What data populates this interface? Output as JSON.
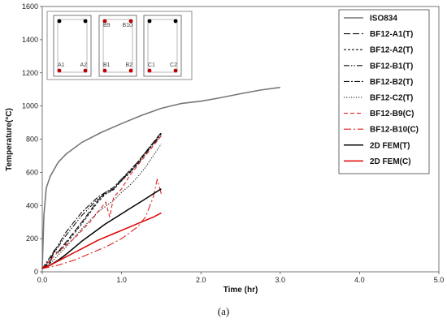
{
  "chart_data": {
    "type": "line",
    "xlabel": "Time (hr)",
    "ylabel": "Temperature(°C)",
    "xlim": [
      0,
      5
    ],
    "ylim": [
      0,
      1600
    ],
    "xticks": [
      "0.0",
      "1.0",
      "2.0",
      "3.0",
      "4.0",
      "5.0"
    ],
    "yticks": [
      "0",
      "200",
      "400",
      "600",
      "800",
      "1000",
      "1200",
      "1400",
      "1600"
    ],
    "legend_position": "top-right",
    "caption": "(a)",
    "series": [
      {
        "name": "ISO834",
        "color": "#777777",
        "dash": "solid",
        "x": [
          0,
          0.02,
          0.05,
          0.1,
          0.2,
          0.3,
          0.5,
          0.75,
          1.0,
          1.25,
          1.5,
          1.75,
          2.0,
          2.25,
          2.5,
          2.75,
          3.0
        ],
        "y": [
          20,
          341,
          505,
          576,
          660,
          710,
          781,
          842,
          894,
          943,
          986,
          1015,
          1029,
          1050,
          1074,
          1096,
          1112
        ]
      },
      {
        "name": "BF12-A1(T)",
        "color": "#111111",
        "dash": "longdash",
        "x": [
          0,
          0.1,
          0.15,
          0.2,
          0.3,
          0.5,
          0.7,
          0.8,
          0.9,
          1.0,
          1.1,
          1.2,
          1.3,
          1.4,
          1.5
        ],
        "y": [
          20,
          60,
          130,
          120,
          180,
          300,
          430,
          480,
          500,
          560,
          600,
          660,
          720,
          780,
          840
        ]
      },
      {
        "name": "BF12-A2(T)",
        "color": "#111111",
        "dash": "shortdash",
        "x": [
          0,
          0.1,
          0.15,
          0.2,
          0.3,
          0.5,
          0.7,
          0.8,
          0.9,
          1.0,
          1.1,
          1.2,
          1.3,
          1.4,
          1.5
        ],
        "y": [
          20,
          55,
          125,
          115,
          170,
          290,
          420,
          470,
          495,
          550,
          595,
          650,
          715,
          775,
          835
        ]
      },
      {
        "name": "BF12-B1(T)",
        "color": "#111111",
        "dash": "dashdotdot",
        "x": [
          0,
          0.1,
          0.2,
          0.3,
          0.5,
          0.7,
          0.8,
          0.9,
          1.0,
          1.1,
          1.2,
          1.3,
          1.4,
          1.5
        ],
        "y": [
          20,
          80,
          150,
          220,
          340,
          440,
          470,
          500,
          550,
          600,
          650,
          710,
          770,
          820
        ]
      },
      {
        "name": "BF12-B2(T)",
        "color": "#111111",
        "dash": "dashdot",
        "x": [
          0,
          0.1,
          0.2,
          0.3,
          0.5,
          0.7,
          0.8,
          0.9,
          1.0,
          1.1,
          1.2,
          1.3,
          1.4,
          1.5
        ],
        "y": [
          20,
          90,
          160,
          240,
          360,
          450,
          480,
          510,
          560,
          610,
          660,
          720,
          780,
          830
        ]
      },
      {
        "name": "BF12-C2(T)",
        "color": "#111111",
        "dash": "dotted",
        "x": [
          0,
          0.1,
          0.2,
          0.3,
          0.5,
          0.7,
          0.9,
          1.0,
          1.1,
          1.2,
          1.3,
          1.4,
          1.5
        ],
        "y": [
          20,
          50,
          100,
          150,
          260,
          360,
          430,
          480,
          520,
          570,
          630,
          700,
          770
        ]
      },
      {
        "name": "BF12-B9(C)",
        "color": "#e02020",
        "dash": "redshort",
        "x": [
          0,
          0.2,
          0.4,
          0.6,
          0.7,
          0.8,
          0.85,
          0.9,
          1.0,
          1.1,
          1.2,
          1.3,
          1.4,
          1.5
        ],
        "y": [
          20,
          120,
          200,
          300,
          360,
          420,
          330,
          450,
          500,
          580,
          640,
          700,
          760,
          820
        ]
      },
      {
        "name": "BF12-B10(C)",
        "color": "#e02020",
        "dash": "reddashdot",
        "x": [
          0,
          0.2,
          0.4,
          0.6,
          0.8,
          1.0,
          1.2,
          1.3,
          1.4,
          1.45,
          1.5
        ],
        "y": [
          20,
          40,
          70,
          110,
          150,
          200,
          270,
          330,
          450,
          560,
          470
        ]
      },
      {
        "name": "2D FEM(T)",
        "color": "#000000",
        "dash": "solid",
        "x": [
          0,
          0.1,
          0.2,
          0.3,
          0.4,
          0.5,
          0.6,
          0.7,
          0.8,
          0.9,
          1.0,
          1.1,
          1.2,
          1.3,
          1.4,
          1.5
        ],
        "y": [
          20,
          40,
          70,
          105,
          145,
          185,
          220,
          255,
          290,
          320,
          350,
          380,
          410,
          440,
          470,
          500
        ]
      },
      {
        "name": "2D FEM(C)",
        "color": "#e00000",
        "dash": "solid",
        "x": [
          0,
          0.1,
          0.2,
          0.3,
          0.4,
          0.5,
          0.6,
          0.7,
          0.8,
          0.9,
          1.0,
          1.1,
          1.2,
          1.3,
          1.4,
          1.5
        ],
        "y": [
          20,
          40,
          65,
          90,
          115,
          140,
          165,
          190,
          210,
          230,
          250,
          270,
          290,
          310,
          330,
          355
        ]
      }
    ],
    "inset": {
      "panels": [
        {
          "labels": [
            "A1",
            "A2"
          ],
          "top_labels": [
            "",
            ""
          ]
        },
        {
          "labels": [
            "B1",
            "B2"
          ],
          "top_labels": [
            "B9",
            "B10"
          ]
        },
        {
          "labels": [
            "C1",
            "C2"
          ],
          "top_labels": [
            "",
            ""
          ]
        }
      ]
    }
  }
}
